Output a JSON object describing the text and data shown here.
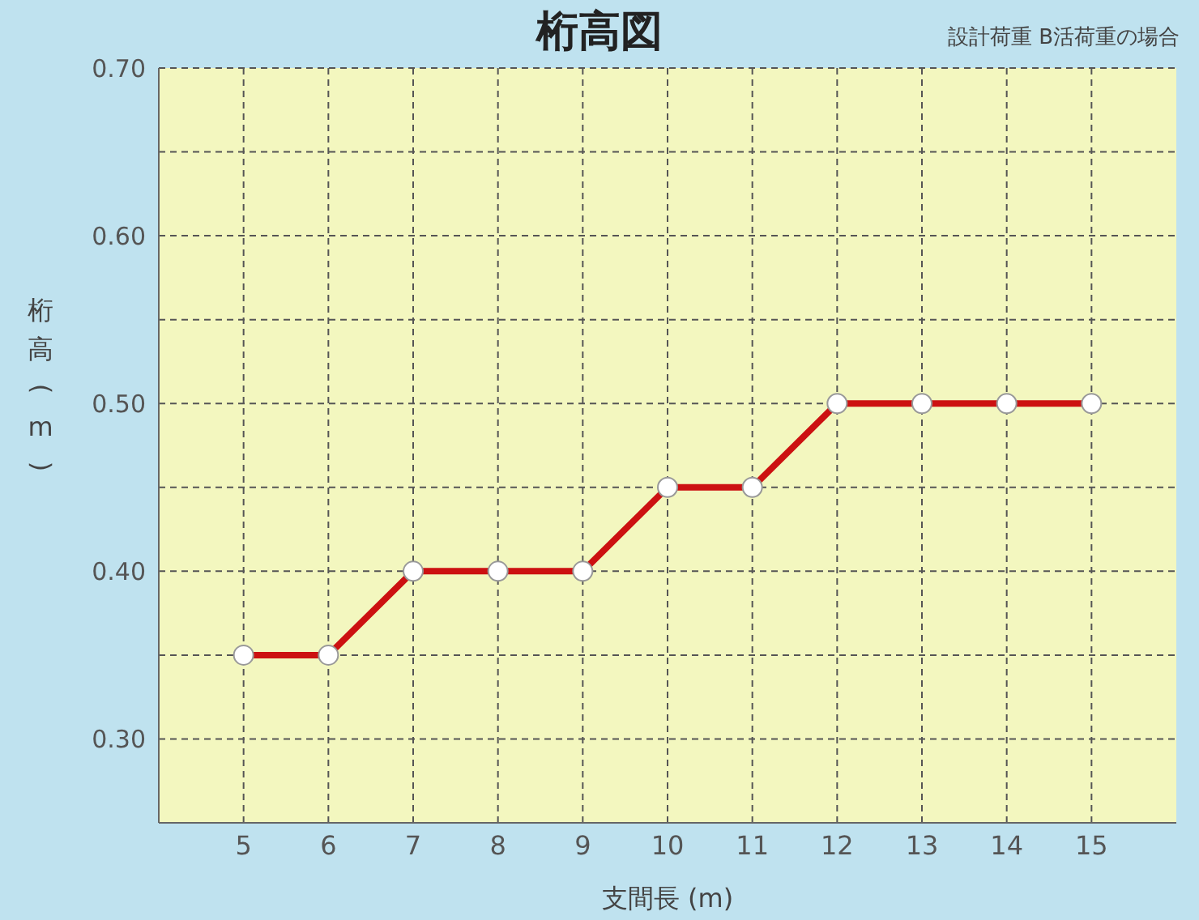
{
  "chart_data": {
    "type": "line",
    "title": "桁高図",
    "subtitle": "設計荷重 B活荷重の場合",
    "xlabel": "支間長 (m)",
    "ylabel": "桁高(m)",
    "x": [
      5,
      6,
      7,
      8,
      9,
      10,
      11,
      12,
      13,
      14,
      15
    ],
    "series": [
      {
        "color": "#cc1111",
        "values": [
          0.35,
          0.35,
          0.4,
          0.4,
          0.4,
          0.45,
          0.45,
          0.5,
          0.5,
          0.5,
          0.5
        ]
      }
    ],
    "xlim": [
      4,
      16
    ],
    "xticks": [
      5,
      6,
      7,
      8,
      9,
      10,
      11,
      12,
      13,
      14,
      15
    ],
    "ylim": [
      0.25,
      0.7
    ],
    "yticks": [
      {
        "value": 0.3,
        "label": "0.30"
      },
      {
        "value": 0.35,
        "label": null
      },
      {
        "value": 0.4,
        "label": "0.40"
      },
      {
        "value": 0.45,
        "label": null
      },
      {
        "value": 0.5,
        "label": "0.50"
      },
      {
        "value": 0.55,
        "label": null
      },
      {
        "value": 0.6,
        "label": "0.60"
      },
      {
        "value": 0.65,
        "label": null
      },
      {
        "value": 0.7,
        "label": "0.70"
      }
    ],
    "grid": true,
    "marker": "circle",
    "line_style": "solid",
    "legend": false
  }
}
